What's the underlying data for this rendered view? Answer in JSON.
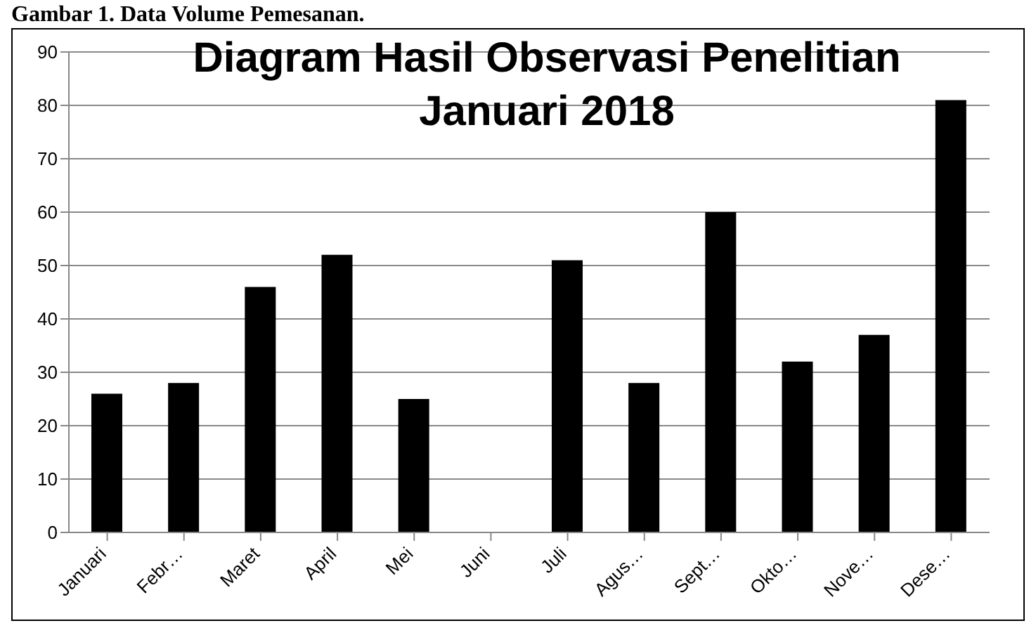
{
  "chart_data": {
    "type": "bar",
    "title": "Diagram Hasil Observasi Penelitian Januari 2018",
    "subtitle": "Gambar 1. Data Volume Pemesanan.",
    "categories": [
      "Januari",
      "Febr…",
      "Maret",
      "April",
      "Mei",
      "Juni",
      "Juli",
      "Agus…",
      "Sept…",
      "Okto…",
      "Nove…",
      "Dese…"
    ],
    "values": [
      26,
      28,
      46,
      52,
      25,
      null,
      51,
      28,
      60,
      32,
      37,
      81
    ],
    "color": "#000000",
    "ylim": [
      0,
      90
    ],
    "yticks": [
      0,
      10,
      20,
      30,
      40,
      50,
      60,
      70,
      80,
      90
    ],
    "grid": "y",
    "legend": false
  }
}
